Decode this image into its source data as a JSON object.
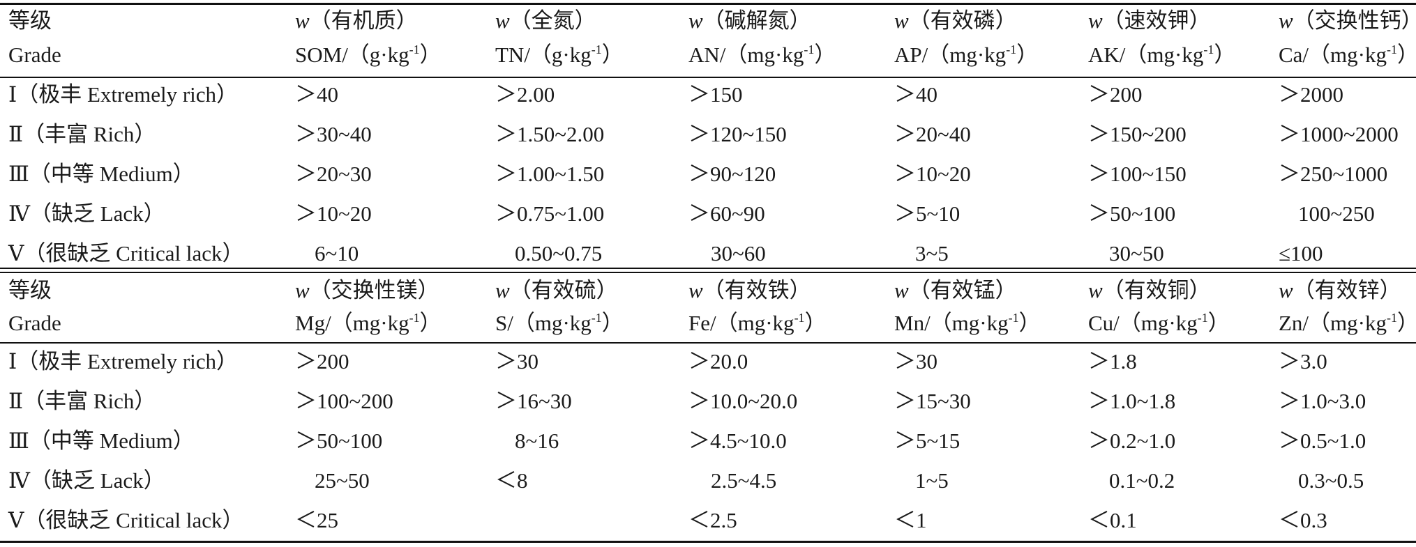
{
  "sections": [
    {
      "headers": [
        {
          "line1": "等级",
          "line2": "Grade"
        },
        {
          "w": "w",
          "line1": "（有机质）",
          "line2_pre": "SOM/（g·kg",
          "sup": "-1",
          "line2_post": "）"
        },
        {
          "w": "w",
          "line1": "（全氮）",
          "line2_pre": "TN/（g·kg",
          "sup": "-1",
          "line2_post": "）"
        },
        {
          "w": "w",
          "line1": "（碱解氮）",
          "line2_pre": "AN/（mg·kg",
          "sup": "-1",
          "line2_post": "）"
        },
        {
          "w": "w",
          "line1": "（有效磷）",
          "line2_pre": "AP/（mg·kg",
          "sup": "-1",
          "line2_post": "）"
        },
        {
          "w": "w",
          "line1": "（速效钾）",
          "line2_pre": "AK/（mg·kg",
          "sup": "-1",
          "line2_post": "）"
        },
        {
          "w": "w",
          "line1": "（交换性钙）",
          "line2_pre": "Ca/（mg·kg",
          "sup": "-1",
          "line2_post": "）"
        }
      ],
      "rows": [
        [
          "Ⅰ（极丰 Extremely rich）",
          "＞40",
          "＞2.00",
          "＞150",
          "＞40",
          "＞200",
          "＞2000"
        ],
        [
          "Ⅱ（丰富 Rich）",
          "＞30~40",
          "＞1.50~2.00",
          "＞120~150",
          "＞20~40",
          "＞150~200",
          "＞1000~2000"
        ],
        [
          "Ⅲ（中等 Medium）",
          "＞20~30",
          "＞1.00~1.50",
          "＞90~120",
          "＞10~20",
          "＞100~150",
          "＞250~1000"
        ],
        [
          "Ⅳ（缺乏 Lack）",
          "＞10~20",
          "＞0.75~1.00",
          "＞60~90",
          "＞5~10",
          "＞50~100",
          "100~250"
        ],
        [
          "Ⅴ（很缺乏 Critical lack）",
          "6~10",
          "0.50~0.75",
          "30~60",
          "3~5",
          "30~50",
          "≤100"
        ]
      ]
    },
    {
      "headers": [
        {
          "line1": "等级",
          "line2": "Grade"
        },
        {
          "w": "w",
          "line1": "（交换性镁）",
          "line2_pre": "Mg/（mg·kg",
          "sup": "-1",
          "line2_post": "）"
        },
        {
          "w": "w",
          "line1": "（有效硫）",
          "line2_pre": "S/（mg·kg",
          "sup": "-1",
          "line2_post": "）"
        },
        {
          "w": "w",
          "line1": "（有效铁）",
          "line2_pre": "Fe/（mg·kg",
          "sup": "-1",
          "line2_post": "）"
        },
        {
          "w": "w",
          "line1": "（有效锰）",
          "line2_pre": "Mn/（mg·kg",
          "sup": "-1",
          "line2_post": "）"
        },
        {
          "w": "w",
          "line1": "（有效铜）",
          "line2_pre": "Cu/（mg·kg",
          "sup": "-1",
          "line2_post": "）"
        },
        {
          "w": "w",
          "line1": "（有效锌）",
          "line2_pre": "Zn/（mg·kg",
          "sup": "-1",
          "line2_post": "）"
        }
      ],
      "rows": [
        [
          "Ⅰ（极丰 Extremely rich）",
          "＞200",
          "＞30",
          "＞20.0",
          "＞30",
          "＞1.8",
          "＞3.0"
        ],
        [
          "Ⅱ（丰富 Rich）",
          "＞100~200",
          "＞16~30",
          "＞10.0~20.0",
          "＞15~30",
          "＞1.0~1.8",
          "＞1.0~3.0"
        ],
        [
          "Ⅲ（中等 Medium）",
          "＞50~100",
          "8~16",
          "＞4.5~10.0",
          "＞5~15",
          "＞0.2~1.0",
          "＞0.5~1.0"
        ],
        [
          "Ⅳ（缺乏 Lack）",
          "25~50",
          "＜8",
          "2.5~4.5",
          "1~5",
          "0.1~0.2",
          "0.3~0.5"
        ],
        [
          "Ⅴ（很缺乏 Critical lack）",
          "＜25",
          "",
          "＜2.5",
          "＜1",
          "＜0.1",
          "＜0.3"
        ]
      ]
    }
  ]
}
